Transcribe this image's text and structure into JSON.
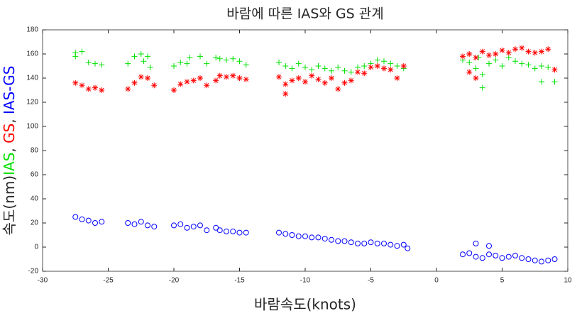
{
  "chart_data": {
    "type": "scatter",
    "title": "바람에 따른 IAS와 GS 관계",
    "xlabel": "바람속도(knots)",
    "ylabel": {
      "prefix": "속도(nm)",
      "separator": ", "
    },
    "xlim": [
      -30,
      10
    ],
    "xticks": [
      -30,
      -25,
      -20,
      -15,
      -10,
      -5,
      0,
      5,
      10
    ],
    "ylim": [
      -20,
      180
    ],
    "yticks": [
      -20,
      0,
      20,
      40,
      60,
      80,
      100,
      120,
      140,
      160,
      180
    ],
    "grid": false,
    "series": [
      {
        "name": "IAS",
        "color": "#00e000",
        "marker": "+",
        "x": [
          -27.5,
          -27.5,
          -27,
          -26.5,
          -26,
          -25.5,
          -23.5,
          -23,
          -22.5,
          -22.3,
          -22,
          -21.8,
          -20,
          -19.5,
          -19,
          -18.8,
          -18,
          -17.5,
          -16.8,
          -16.5,
          -16,
          -15.5,
          -15,
          -14.5,
          -12,
          -11.5,
          -11,
          -10.5,
          -10,
          -9.5,
          -9,
          -8.5,
          -8,
          -7.5,
          -7,
          -6.5,
          -6,
          -5.5,
          -5,
          -4.5,
          -4,
          -3.5,
          -3,
          -2.5,
          2,
          2.5,
          3,
          3.2,
          3.5,
          4,
          4.5,
          5,
          5.5,
          6,
          6.5,
          7,
          7.5,
          8,
          8.5,
          9,
          3.5,
          8
        ],
        "values": [
          161,
          158,
          162,
          153,
          152,
          151,
          152,
          158,
          160,
          154,
          158,
          149,
          150,
          153,
          152,
          157,
          158,
          152,
          157,
          156,
          155,
          156,
          154,
          151,
          153,
          150,
          148,
          152,
          149,
          147,
          150,
          148,
          146,
          149,
          146,
          145,
          149,
          150,
          152,
          155,
          154,
          152,
          150,
          148,
          155,
          153,
          148,
          157,
          143,
          152,
          155,
          150,
          157,
          154,
          152,
          151,
          148,
          150,
          149,
          137,
          132,
          137
        ]
      },
      {
        "name": "GS",
        "color": "#ff0000",
        "marker": "*",
        "x": [
          -27.5,
          -27,
          -26.5,
          -26,
          -25.5,
          -23.5,
          -23,
          -22.5,
          -22,
          -21.5,
          -20,
          -19.5,
          -19,
          -18.5,
          -18,
          -17.5,
          -16.8,
          -16.5,
          -16,
          -15.5,
          -15,
          -14.5,
          -12,
          -11.5,
          -11,
          -10.5,
          -10,
          -9.5,
          -9,
          -8.5,
          -8,
          -7.5,
          -7,
          -6.5,
          -6,
          -5.5,
          -5,
          -4.5,
          -4,
          -3.5,
          -3,
          -2.5,
          -11.5,
          2,
          2.5,
          3,
          3.5,
          4,
          4.5,
          5,
          5.5,
          6,
          6.5,
          7,
          7.5,
          8,
          8.5,
          9,
          3,
          2.5
        ],
        "values": [
          136,
          134,
          131,
          132,
          130,
          131,
          136,
          141,
          140,
          134,
          130,
          135,
          137,
          138,
          140,
          134,
          138,
          142,
          141,
          142,
          140,
          139,
          141,
          135,
          138,
          140,
          137,
          142,
          139,
          136,
          140,
          131,
          136,
          138,
          145,
          144,
          149,
          150,
          148,
          147,
          140,
          150,
          127,
          158,
          160,
          157,
          162,
          159,
          160,
          163,
          161,
          164,
          165,
          162,
          161,
          162,
          164,
          147,
          140,
          145
        ]
      },
      {
        "name": "IAS-GS",
        "color": "#0000ff",
        "marker": "o",
        "x": [
          -27.5,
          -27,
          -26.5,
          -26,
          -25.5,
          -23.5,
          -23,
          -22.5,
          -22,
          -21.5,
          -20,
          -19.5,
          -19,
          -18.5,
          -18,
          -17.5,
          -16.8,
          -16.5,
          -16,
          -15.5,
          -15,
          -14.5,
          -12,
          -11.5,
          -11,
          -10.5,
          -10,
          -9.5,
          -9,
          -8.5,
          -8,
          -7.5,
          -7,
          -6.5,
          -6,
          -5.5,
          -5,
          -4.5,
          -4,
          -3.5,
          -3,
          -2.5,
          -2.2,
          2,
          2.5,
          3,
          3,
          3.5,
          4,
          4.5,
          5,
          5.5,
          6,
          6.5,
          7,
          7.5,
          8,
          8.5,
          9,
          4
        ],
        "values": [
          25,
          23,
          22,
          20,
          21,
          20,
          19,
          21,
          18,
          17,
          18,
          19,
          16,
          17,
          18,
          14,
          16,
          14,
          13,
          13,
          12,
          12,
          12,
          11,
          10,
          9,
          9,
          8,
          8,
          7,
          6,
          5,
          5,
          4,
          3,
          3,
          4,
          3,
          3,
          2,
          1,
          2,
          -1,
          -6,
          -5,
          3,
          -8,
          -9,
          -6,
          -7,
          -9,
          -8,
          -7,
          -9,
          -10,
          -11,
          -12,
          -11,
          -10,
          1
        ]
      }
    ]
  }
}
